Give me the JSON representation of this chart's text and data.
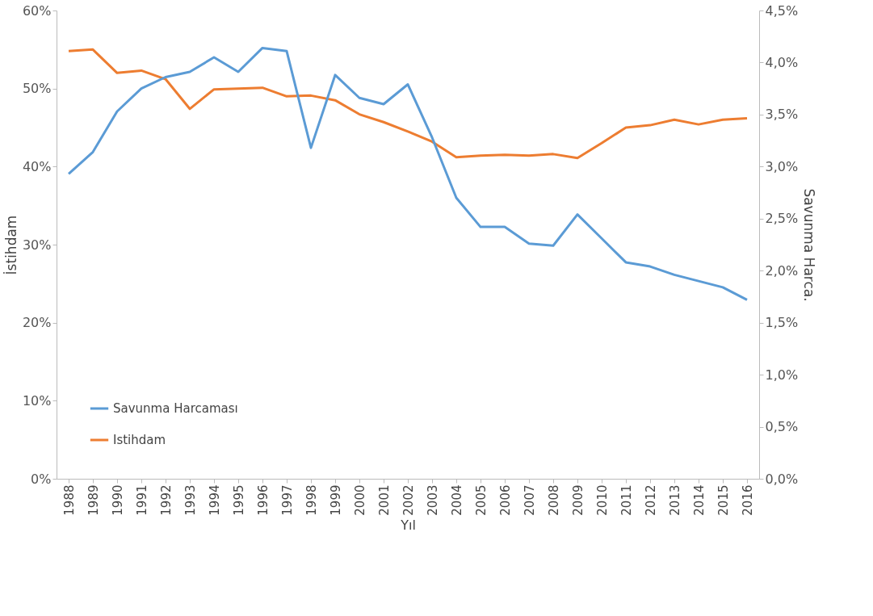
{
  "chart_data": {
    "type": "line",
    "categories": [
      "1988",
      "1989",
      "1990",
      "1991",
      "1992",
      "1993",
      "1994",
      "1995",
      "1996",
      "1997",
      "1998",
      "1999",
      "2000",
      "2001",
      "2002",
      "2003",
      "2004",
      "2005",
      "2006",
      "2007",
      "2008",
      "2009",
      "2010",
      "2011",
      "2012",
      "2013",
      "2014",
      "2015",
      "2016"
    ],
    "series": [
      {
        "name": "Savunma Harcaması",
        "color": "#5b9bd5",
        "axis": "y2",
        "values": [
          2.93,
          3.14,
          3.53,
          3.75,
          3.86,
          3.91,
          4.05,
          3.91,
          4.14,
          4.11,
          3.18,
          3.88,
          3.66,
          3.6,
          3.79,
          3.28,
          2.7,
          2.42,
          2.42,
          2.26,
          2.24,
          2.54,
          2.31,
          2.08,
          2.04,
          1.96,
          1.9,
          1.84,
          1.72
        ]
      },
      {
        "name": "Istihdam",
        "color": "#ed7d31",
        "values": [
          54.8,
          55.0,
          52.0,
          52.3,
          51.2,
          47.4,
          49.9,
          50.0,
          50.1,
          49.0,
          49.1,
          48.5,
          46.7,
          45.7,
          44.5,
          43.2,
          41.2,
          41.4,
          41.5,
          41.4,
          41.6,
          41.1,
          43.0,
          45.0,
          45.3,
          46.0,
          45.4,
          46.0,
          46.2
        ]
      }
    ],
    "xlabel": "Yıl",
    "ylabel": "İstihdam",
    "y2label": "Savunma Harca.",
    "ylim": [
      0,
      60
    ],
    "yticks": [
      {
        "value": 0,
        "label": "0%"
      },
      {
        "value": 10,
        "label": "10%"
      },
      {
        "value": 20,
        "label": "20%"
      },
      {
        "value": 30,
        "label": "30%"
      },
      {
        "value": 40,
        "label": "40%"
      },
      {
        "value": 50,
        "label": "50%"
      },
      {
        "value": 60,
        "label": "60%"
      }
    ],
    "y2lim": [
      0,
      4.5
    ],
    "y2ticks": [
      {
        "value": 0,
        "label": "0,0%"
      },
      {
        "value": 0.5,
        "label": "0,5%"
      },
      {
        "value": 1,
        "label": "1,0%"
      },
      {
        "value": 1.5,
        "label": "1,5%"
      },
      {
        "value": 2,
        "label": "2,0%"
      },
      {
        "value": 2.5,
        "label": "2,5%"
      },
      {
        "value": 3,
        "label": "3,0%"
      },
      {
        "value": 3.5,
        "label": "3,5%"
      },
      {
        "value": 4,
        "label": "4,0%"
      },
      {
        "value": 4.5,
        "label": "4,5%"
      }
    ],
    "grid": false,
    "legend": "bottom left",
    "marker": "none",
    "line_style": "solid"
  }
}
